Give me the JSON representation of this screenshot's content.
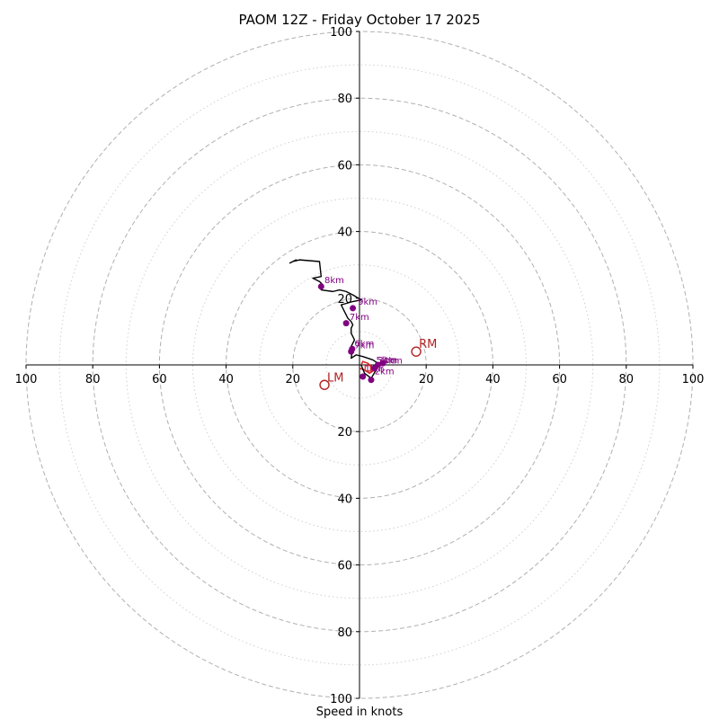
{
  "chart_data": {
    "type": "line",
    "title": "PAOM 12Z - Friday October 17 2025",
    "xlabel": "Speed in knots",
    "ylabel": "",
    "xlim": [
      -100,
      100
    ],
    "ylim": [
      -100,
      100
    ],
    "major_rings": [
      20,
      40,
      60,
      80,
      100
    ],
    "minor_rings": [
      10,
      30,
      50,
      70,
      90
    ],
    "tick_labels": {
      "x_left": [
        "100",
        "80",
        "60",
        "40",
        "20"
      ],
      "x_right": [
        "20",
        "40",
        "60",
        "80",
        "100"
      ],
      "y_up": [
        "20",
        "40",
        "60",
        "80",
        "100"
      ],
      "y_down": [
        "20",
        "40",
        "60",
        "80",
        "100"
      ]
    },
    "colors": {
      "hodograph": "#000000",
      "lowlevel": "#d62728",
      "points": "#800080",
      "labels": "#800080",
      "motion": "#b22222",
      "major_grid": "#b0b0b0",
      "minor_grid": "#d0d0d0"
    },
    "hodograph": {
      "low_u": [
        0.0,
        1.5,
        3.0,
        4.5,
        3.5,
        2.5,
        1.0,
        0.5
      ],
      "low_v": [
        -1.0,
        -1.5,
        -2.5,
        -1.5,
        -0.5,
        0.5,
        1.0,
        0.0
      ],
      "u": [
        0.5,
        1.5,
        3.5,
        5.0,
        5.5,
        4.0,
        2.5,
        1.0,
        -1.0,
        -2.5,
        -2.2,
        -1.5,
        -2.5,
        -1.5,
        -2.0,
        -2.5,
        -2.5,
        -2.0,
        -2.5,
        -3.5,
        -4.5,
        -5.5,
        -2.0,
        0.5,
        -2.0,
        -4.0,
        -6.0,
        -8.0,
        -11.5,
        -11.0,
        -12.0,
        -14.0,
        -11.5,
        -12.0,
        -18.0,
        -20.0,
        -19.0,
        -21.0
      ],
      "v": [
        0.0,
        -2.5,
        -4.0,
        -1.5,
        0.5,
        1.5,
        2.0,
        2.5,
        3.0,
        2.0,
        4.0,
        4.5,
        5.5,
        7.5,
        8.5,
        9.5,
        11.0,
        12.0,
        13.0,
        14.0,
        16.0,
        18.0,
        19.0,
        19.5,
        21.0,
        22.0,
        22.5,
        22.0,
        22.5,
        24.0,
        25.0,
        26.0,
        26.5,
        31.0,
        31.5,
        31.0,
        31.5,
        30.5
      ]
    },
    "height_points": [
      {
        "u": 1.0,
        "v": -3.5,
        "label": "1km",
        "lu": 1.5,
        "lv": -2.0
      },
      {
        "u": 3.5,
        "v": -4.5,
        "label": "2km",
        "lu": 4.5,
        "lv": -2.8
      },
      {
        "u": 4.5,
        "v": -1.0,
        "label": "3km",
        "lu": 5.5,
        "lv": 0.5
      },
      {
        "u": 7.0,
        "v": 0.5,
        "label": "4km",
        "lu": 7.0,
        "lv": 0.4
      },
      {
        "u": 5.5,
        "v": 0.0,
        "label": "5km",
        "lu": 5.0,
        "lv": 0.6
      },
      {
        "u": -2.5,
        "v": 4.0,
        "label": "6km",
        "lu": -1.5,
        "lv": 5.5
      },
      {
        "u": -2.2,
        "v": 4.8,
        "label": "7km",
        "lu": -1.5,
        "lv": 5.0
      },
      {
        "u": -4.0,
        "v": 12.5,
        "label": "7km",
        "lu": -3.0,
        "lv": 13.5
      },
      {
        "u": -2.0,
        "v": 17.0,
        "label": "9km",
        "lu": -0.5,
        "lv": 18.0
      },
      {
        "u": -11.5,
        "v": 23.5,
        "label": "8km",
        "lu": -10.5,
        "lv": 24.5
      }
    ],
    "storm_motions": [
      {
        "u": 17.0,
        "v": 4.0,
        "label": "RM"
      },
      {
        "u": -10.5,
        "v": -6.0,
        "label": "LM"
      }
    ],
    "mean_wind_marker": {
      "u": 2.5,
      "v": -1.0
    }
  }
}
